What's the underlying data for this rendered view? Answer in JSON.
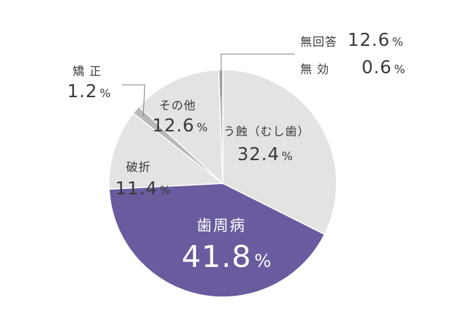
{
  "colors": {
    "slice_light": "#e3e3e3",
    "slice_gray": "#b8b8b8",
    "slice_highlight": "#6a5b9e",
    "separator": "#ffffff",
    "leader_line": "#777777"
  },
  "chart_data": {
    "type": "pie",
    "slices": [
      {
        "name": "う蝕（むし歯）",
        "value": 32.4,
        "value_label": "32.4",
        "unit": "%"
      },
      {
        "name": "歯周病",
        "value": 41.8,
        "value_label": "41.8",
        "unit": "%"
      },
      {
        "name": "破折",
        "value": 11.4,
        "value_label": "11.4",
        "unit": "%"
      },
      {
        "name": "矯 正",
        "value": 1.2,
        "value_label": "1.2",
        "unit": "%"
      },
      {
        "name": "その他",
        "value": 12.6,
        "value_label": "12.6",
        "unit": "%"
      },
      {
        "name": "無 効",
        "value": 0.6,
        "value_label": "0.6",
        "unit": "%"
      }
    ],
    "extra_labels": [
      {
        "name": "無回答",
        "value_label": "12.6",
        "unit": "%"
      }
    ]
  }
}
